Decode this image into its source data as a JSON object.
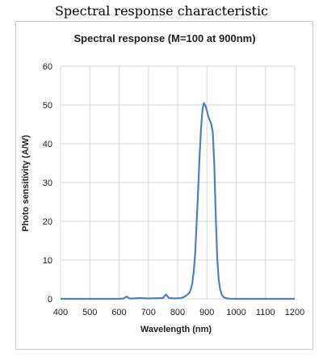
{
  "heading": "Spectral response characteristic",
  "chart_data": {
    "type": "line",
    "title": "Spectral response (M=100 at 900nm)",
    "xlabel": "Wavelength (nm)",
    "ylabel": "Photo sensitivity (A/W)",
    "xlim": [
      400,
      1200
    ],
    "ylim": [
      0,
      60
    ],
    "xticks": [
      400,
      500,
      600,
      700,
      800,
      900,
      1000,
      1100,
      1200
    ],
    "yticks": [
      0,
      10,
      20,
      30,
      40,
      50,
      60
    ],
    "grid": true,
    "line_color": "#4f81bd",
    "series": [
      {
        "x": [
          400,
          500,
          600,
          615,
          625,
          635,
          650,
          670,
          700,
          750,
          755,
          760,
          765,
          770,
          790,
          810,
          820,
          830,
          835,
          840,
          845,
          850,
          855,
          860,
          865,
          870,
          875,
          880,
          885,
          890,
          895,
          900,
          905,
          910,
          915,
          920,
          925,
          930,
          935,
          940,
          945,
          950,
          955,
          960,
          970,
          980,
          1000,
          1050,
          1100,
          1200
        ],
        "y": [
          0,
          0,
          0,
          0.1,
          0.6,
          0.1,
          0.1,
          0.2,
          0.1,
          0.2,
          0.7,
          1.1,
          0.7,
          0.2,
          0.1,
          0.2,
          0.4,
          0.9,
          1.2,
          1.5,
          2.5,
          4,
          7,
          12,
          20,
          28,
          37,
          44,
          49,
          50.5,
          49.8,
          48.5,
          47,
          46,
          45,
          43,
          35,
          22,
          11,
          5,
          2.5,
          1.2,
          0.6,
          0.3,
          0.1,
          0.05,
          0,
          0,
          0,
          0
        ]
      }
    ]
  }
}
